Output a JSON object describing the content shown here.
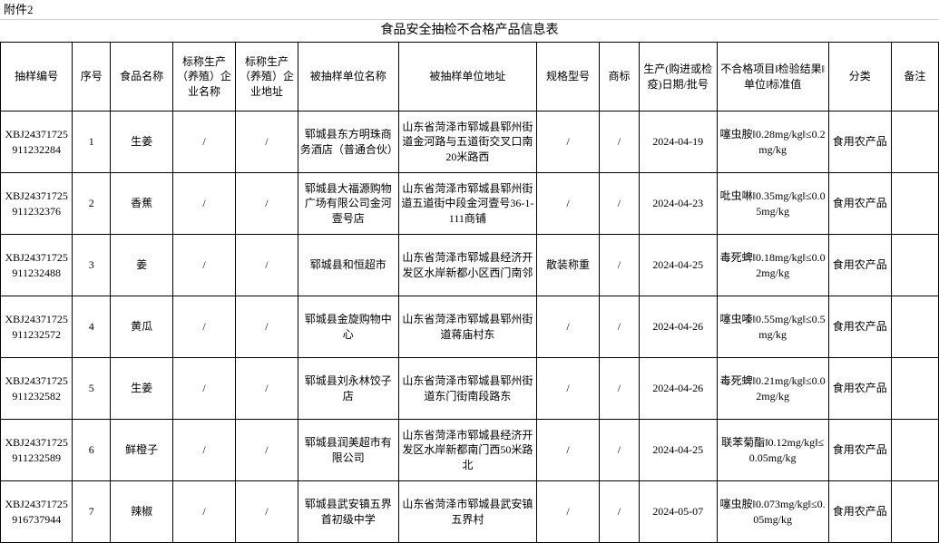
{
  "attachment_label": "附件2",
  "title": "食品安全抽检不合格产品信息表",
  "columns": [
    "抽样编号",
    "序号",
    "食品名称",
    "标称生产（养殖）企业名称",
    "标称生产（养殖）企业地址",
    "被抽样单位名称",
    "被抽样单位地址",
    "规格型号",
    "商标",
    "生产(购进或检疫)日期/批号",
    "不合格项目‖检验结果‖单位‖标准值",
    "分类",
    "备注"
  ],
  "rows": [
    {
      "cells": [
        "XBJ24371725911232284",
        "1",
        "生姜",
        "/",
        "/",
        "郓城县东方明珠商务酒店（普通合伙）",
        "山东省菏泽市郓城县郓州街道金河路与五道街交叉口南20米路西",
        "/",
        "/",
        "2024-04-19",
        "噻虫胺‖0.28mg/kg‖≤0.2mg/kg",
        "食用农产品",
        ""
      ]
    },
    {
      "cells": [
        "XBJ24371725911232376",
        "2",
        "香蕉",
        "/",
        "/",
        "郓城县大福源购物广场有限公司金河壹号店",
        "山东省菏泽市郓城县郓州街道五道街中段金河壹号36-1-111商铺",
        "/",
        "/",
        "2024-04-23",
        "吡虫啉‖0.35mg/kg‖≤0.05mg/kg",
        "食用农产品",
        ""
      ]
    },
    {
      "cells": [
        "XBJ24371725911232488",
        "3",
        "姜",
        "/",
        "/",
        "郓城县和恒超市",
        "山东省菏泽市郓城县经济开发区水岸新都小区西门南邻",
        "散装称重",
        "/",
        "2024-04-25",
        "毒死蜱‖0.18mg/kg‖≤0.02mg/kg",
        "食用农产品",
        ""
      ]
    },
    {
      "cells": [
        "XBJ24371725911232572",
        "4",
        "黄瓜",
        "/",
        "/",
        "郓城县金旋购物中心",
        "山东省菏泽市郓城县郓州街道蒋庙村东",
        "/",
        "/",
        "2024-04-26",
        "噻虫嗪‖0.55mg/kg‖≤0.5mg/kg",
        "食用农产品",
        ""
      ]
    },
    {
      "cells": [
        "XBJ24371725911232582",
        "5",
        "生姜",
        "/",
        "/",
        "郓城县刘永林饺子店",
        "山东省菏泽市郓城县郓州街道东门街南段路东",
        "/",
        "/",
        "2024-04-26",
        "毒死蜱‖0.21mg/kg‖≤0.02mg/kg",
        "食用农产品",
        ""
      ]
    },
    {
      "cells": [
        "XBJ24371725911232589",
        "6",
        "鲜橙子",
        "/",
        "/",
        "郓城县润美超市有限公司",
        "山东省菏泽市郓城县经济开发区水岸新都南门西50米路北",
        "/",
        "/",
        "2024-04-25",
        "联苯菊酯‖0.12mg/kg‖≤0.05mg/kg",
        "食用农产品",
        ""
      ]
    },
    {
      "cells": [
        "XBJ24371725916737944",
        "7",
        "辣椒",
        "/",
        "/",
        "郓城县武安镇五界首初级中学",
        "山东省菏泽市郓城县武安镇五界村",
        "/",
        "/",
        "2024-05-07",
        "噻虫胺‖0.073mg/kg‖≤0.05mg/kg",
        "食用农产品",
        ""
      ]
    }
  ],
  "col_classes": [
    "c0",
    "c1",
    "c2",
    "c3",
    "c4",
    "c5",
    "c6",
    "c7",
    "c8",
    "c9",
    "c10",
    "c11",
    "c12"
  ]
}
